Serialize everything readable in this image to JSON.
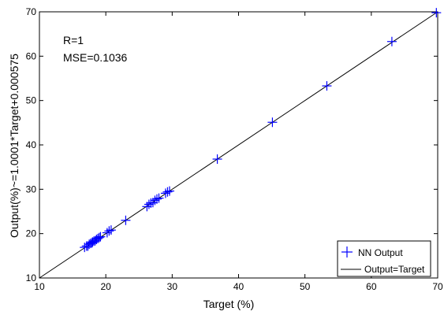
{
  "chart_data": {
    "type": "scatter",
    "xlabel": "Target (%)",
    "ylabel": "Output(%)~=1.0001*Target+0.000575",
    "xlim": [
      10,
      70
    ],
    "ylim": [
      10,
      70
    ],
    "xticks": [
      10,
      20,
      30,
      40,
      50,
      60,
      70
    ],
    "yticks": [
      10,
      20,
      30,
      40,
      50,
      60,
      70
    ],
    "grid": false,
    "legend_position": "bottom-right",
    "annotations": [
      "R=1",
      "MSE=0.1036"
    ],
    "series": [
      {
        "name": "NN Output",
        "type": "scatter",
        "marker": "+",
        "color": "#0000ff",
        "points": [
          [
            16.8,
            16.9
          ],
          [
            17.1,
            17.2
          ],
          [
            17.3,
            17.2
          ],
          [
            17.5,
            17.6
          ],
          [
            17.7,
            17.8
          ],
          [
            17.9,
            17.9
          ],
          [
            18.0,
            18.1
          ],
          [
            18.2,
            18.3
          ],
          [
            18.4,
            18.4
          ],
          [
            18.6,
            18.7
          ],
          [
            18.8,
            18.9
          ],
          [
            19.0,
            19.1
          ],
          [
            19.2,
            19.3
          ],
          [
            20.2,
            20.2
          ],
          [
            20.5,
            20.6
          ],
          [
            20.8,
            20.8
          ],
          [
            23.0,
            23.0
          ],
          [
            26.2,
            26.1
          ],
          [
            26.5,
            26.6
          ],
          [
            26.8,
            26.9
          ],
          [
            27.1,
            27.0
          ],
          [
            27.4,
            27.5
          ],
          [
            27.7,
            27.8
          ],
          [
            28.0,
            28.0
          ],
          [
            29.0,
            29.1
          ],
          [
            29.3,
            29.4
          ],
          [
            29.6,
            29.6
          ],
          [
            36.8,
            36.8
          ],
          [
            45.1,
            45.1
          ],
          [
            53.3,
            53.3
          ],
          [
            63.1,
            63.3
          ],
          [
            69.8,
            69.8
          ]
        ]
      },
      {
        "name": "Output=Target",
        "type": "line",
        "color": "#000000",
        "points": [
          [
            10,
            10
          ],
          [
            70,
            70
          ]
        ]
      }
    ]
  }
}
